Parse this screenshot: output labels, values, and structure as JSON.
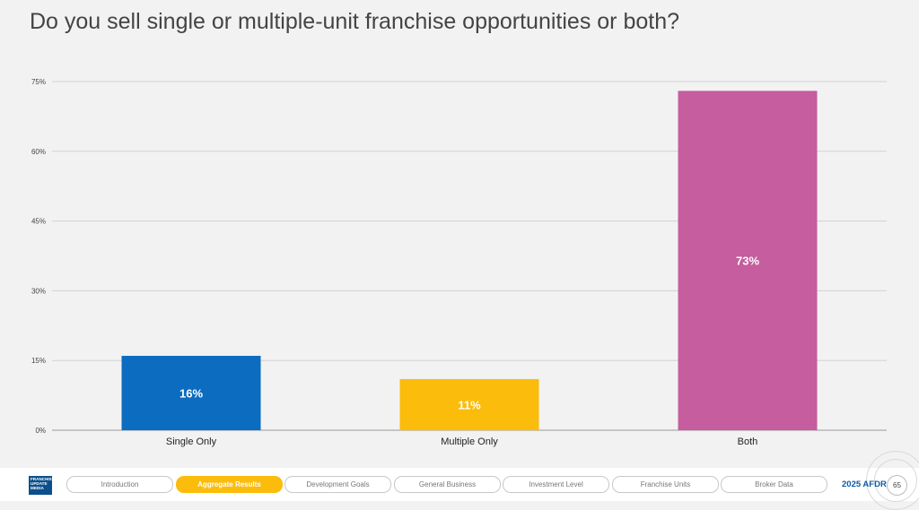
{
  "title": "Do you sell single or multiple-unit franchise opportunities or both?",
  "chart_data": {
    "type": "bar",
    "categories": [
      "Single Only",
      "Multiple Only",
      "Both"
    ],
    "values": [
      16,
      11,
      73
    ],
    "value_labels": [
      "16%",
      "11%",
      "73%"
    ],
    "colors": [
      "#0b6cc0",
      "#fbbc0b",
      "#c55d9f"
    ],
    "yticks": [
      "0%",
      "15%",
      "30%",
      "45%",
      "60%",
      "75%"
    ],
    "ytick_values": [
      0,
      15,
      30,
      45,
      60,
      75
    ],
    "ylim": [
      0,
      75
    ],
    "grid": true,
    "title": "Do you sell single or multiple-unit franchise opportunities or both?",
    "xlabel": "",
    "ylabel": ""
  },
  "footer": {
    "logo_lines": [
      "FRANCHISE",
      "UPDATE",
      "MEDIA"
    ],
    "nav": [
      {
        "label": "Introduction",
        "active": false
      },
      {
        "label": "Aggregate Results",
        "active": true
      },
      {
        "label": "Development Goals",
        "active": false
      },
      {
        "label": "General Business",
        "active": false
      },
      {
        "label": "Investment Level",
        "active": false
      },
      {
        "label": "Franchise Units",
        "active": false
      },
      {
        "label": "Broker Data",
        "active": false
      }
    ],
    "report_label": "2025 AFDR",
    "page_number": "65"
  }
}
